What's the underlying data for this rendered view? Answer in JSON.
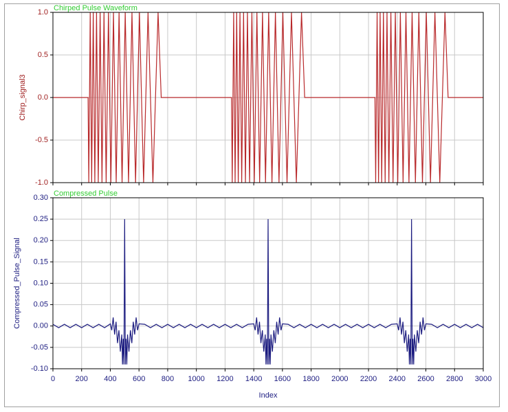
{
  "chart_data": [
    {
      "type": "line",
      "title": "Chirped Pulse Waveform",
      "y_label": "Chirp_signal3",
      "xlim": [
        0,
        3000
      ],
      "xticks": [
        0,
        200,
        400,
        600,
        800,
        1000,
        1200,
        1400,
        1600,
        1800,
        2000,
        2200,
        2400,
        2600,
        2800,
        3000
      ],
      "ylim": [
        -1,
        1
      ],
      "yticks": [
        {
          "value": -1,
          "label": "-1.0"
        },
        {
          "value": -0.5,
          "label": "-0.5"
        },
        {
          "value": 0,
          "label": "0.0"
        },
        {
          "value": 0.5,
          "label": "0.5"
        },
        {
          "value": 1,
          "label": "1.0"
        }
      ],
      "grid": true,
      "series": [
        {
          "color": "#b8282a",
          "x": [
            0,
            245,
            250,
            260,
            270,
            281,
            292,
            304,
            316,
            329,
            342,
            356,
            371,
            387,
            404,
            422,
            441,
            461,
            482,
            504,
            527,
            551,
            576,
            603,
            632,
            663,
            697,
            733,
            755,
            1245,
            1250,
            1260,
            1270,
            1281,
            1292,
            1304,
            1316,
            1329,
            1342,
            1356,
            1371,
            1387,
            1404,
            1422,
            1441,
            1461,
            1482,
            1504,
            1527,
            1551,
            1576,
            1603,
            1632,
            1663,
            1697,
            1733,
            1755,
            2245,
            2250,
            2260,
            2270,
            2281,
            2292,
            2304,
            2316,
            2329,
            2342,
            2356,
            2371,
            2387,
            2404,
            2422,
            2441,
            2461,
            2482,
            2504,
            2527,
            2551,
            2576,
            2603,
            2632,
            2663,
            2697,
            2733,
            2755,
            3000
          ],
          "values": [
            0,
            0,
            -1,
            1,
            -1,
            1,
            -1,
            1,
            -1,
            1,
            -1,
            1,
            -1,
            1,
            -1,
            1,
            -1,
            1,
            -1,
            1,
            -1,
            1,
            -1,
            1,
            -1,
            1,
            -1,
            1,
            0,
            0,
            -1,
            1,
            -1,
            1,
            -1,
            1,
            -1,
            1,
            -1,
            1,
            -1,
            1,
            -1,
            1,
            -1,
            1,
            -1,
            1,
            -1,
            1,
            -1,
            1,
            -1,
            1,
            -1,
            1,
            0,
            0,
            -1,
            1,
            -1,
            1,
            -1,
            1,
            -1,
            1,
            -1,
            1,
            -1,
            1,
            -1,
            1,
            -1,
            1,
            -1,
            1,
            -1,
            1,
            -1,
            1,
            -1,
            1,
            -1,
            1,
            0,
            0
          ]
        }
      ]
    },
    {
      "type": "line",
      "title": "Compressed Pulse",
      "y_label": "Compressed_Pulse_Signal",
      "x_label": "Index",
      "xlim": [
        0,
        3000
      ],
      "xticks": [
        0,
        200,
        400,
        600,
        800,
        1000,
        1200,
        1400,
        1600,
        1800,
        2000,
        2200,
        2400,
        2600,
        2800,
        3000
      ],
      "ylim": [
        -0.1,
        0.3
      ],
      "yticks": [
        {
          "value": -0.1,
          "label": "-0.10"
        },
        {
          "value": -0.05,
          "label": "-0.05"
        },
        {
          "value": 0,
          "label": "0.00"
        },
        {
          "value": 0.05,
          "label": "0.05"
        },
        {
          "value": 0.1,
          "label": "0.10"
        },
        {
          "value": 0.15,
          "label": "0.15"
        },
        {
          "value": 0.2,
          "label": "0.20"
        },
        {
          "value": 0.25,
          "label": "0.25"
        },
        {
          "value": 0.3,
          "label": "0.30"
        }
      ],
      "grid": true,
      "series": [
        {
          "color": "#1c1c80",
          "x": [
            0,
            40,
            80,
            120,
            160,
            200,
            240,
            280,
            320,
            360,
            400,
            410,
            420,
            430,
            440,
            450,
            460,
            470,
            480,
            485,
            490,
            495,
            500,
            505,
            510,
            515,
            520,
            530,
            540,
            550,
            560,
            570,
            580,
            590,
            600,
            640,
            680,
            720,
            760,
            800,
            840,
            880,
            920,
            960,
            1000,
            1040,
            1080,
            1120,
            1160,
            1200,
            1240,
            1280,
            1320,
            1360,
            1400,
            1410,
            1420,
            1430,
            1440,
            1450,
            1460,
            1470,
            1480,
            1485,
            1490,
            1495,
            1500,
            1505,
            1510,
            1515,
            1520,
            1530,
            1540,
            1550,
            1560,
            1570,
            1580,
            1590,
            1600,
            1640,
            1680,
            1720,
            1760,
            1800,
            1840,
            1880,
            1920,
            1960,
            2000,
            2040,
            2080,
            2120,
            2160,
            2200,
            2240,
            2280,
            2320,
            2360,
            2400,
            2410,
            2420,
            2430,
            2440,
            2450,
            2460,
            2470,
            2480,
            2485,
            2490,
            2495,
            2500,
            2505,
            2510,
            2515,
            2520,
            2530,
            2540,
            2550,
            2560,
            2570,
            2580,
            2590,
            2600,
            2640,
            2680,
            2720,
            2760,
            2800,
            2840,
            2880,
            2920,
            2960,
            3000
          ],
          "values": [
            0.004,
            -0.004,
            0.004,
            -0.004,
            0.004,
            -0.004,
            0.004,
            -0.004,
            0.004,
            -0.004,
            0.005,
            -0.01,
            0.02,
            -0.02,
            0.01,
            -0.04,
            -0.01,
            -0.06,
            -0.02,
            -0.09,
            -0.03,
            -0.09,
            0.25,
            -0.09,
            -0.03,
            -0.09,
            -0.02,
            -0.06,
            -0.01,
            -0.04,
            0.01,
            -0.02,
            0.02,
            -0.01,
            0.005,
            0.004,
            -0.004,
            0.004,
            -0.004,
            0.004,
            -0.004,
            0.004,
            -0.004,
            0.004,
            -0.004,
            0.004,
            -0.004,
            0.004,
            -0.004,
            0.004,
            -0.004,
            0.004,
            -0.004,
            0.004,
            0.005,
            -0.01,
            0.02,
            -0.02,
            0.01,
            -0.04,
            -0.01,
            -0.06,
            -0.02,
            -0.09,
            -0.03,
            -0.09,
            0.25,
            -0.09,
            -0.03,
            -0.09,
            -0.02,
            -0.06,
            -0.01,
            -0.04,
            0.01,
            -0.02,
            0.02,
            -0.01,
            0.005,
            0.004,
            -0.004,
            0.004,
            -0.004,
            0.004,
            -0.004,
            0.004,
            -0.004,
            0.004,
            -0.004,
            0.004,
            -0.004,
            0.004,
            -0.004,
            0.004,
            -0.004,
            0.004,
            -0.004,
            0.004,
            0.005,
            -0.01,
            0.02,
            -0.02,
            0.01,
            -0.04,
            -0.01,
            -0.06,
            -0.02,
            -0.09,
            -0.03,
            -0.09,
            0.25,
            -0.09,
            -0.03,
            -0.09,
            -0.02,
            -0.06,
            -0.01,
            -0.04,
            0.01,
            -0.02,
            0.02,
            -0.01,
            0.005,
            0.004,
            -0.004,
            0.004,
            -0.004,
            0.004,
            -0.004,
            0.004,
            -0.004,
            0.004,
            -0.004
          ]
        }
      ]
    }
  ]
}
